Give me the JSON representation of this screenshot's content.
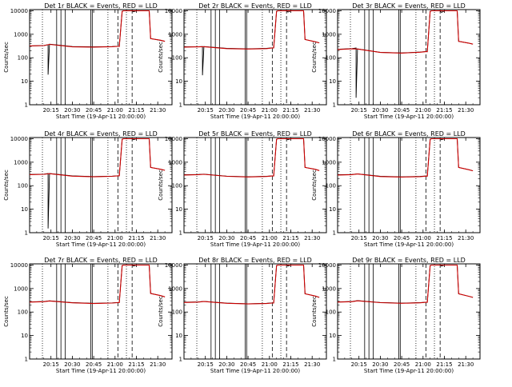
{
  "chart_data": [
    {
      "type": "line",
      "title": "Det 1r BLACK = Events, RED = LLD",
      "xlabel": "Start Time (19-Apr-11 20:00:00)",
      "ylabel": "Counts/sec",
      "y_scale": "log",
      "x_tick_labels": [
        "20:15",
        "20:30",
        "20:45",
        "21:00",
        "21:15",
        "21:30"
      ],
      "y_tick_labels": [
        "1",
        "10",
        "100",
        "1000",
        "10000"
      ],
      "series": [
        {
          "name": "Events",
          "color": "#000000",
          "x": [
            "20:00",
            "20:10",
            "20:13",
            "20:13",
            "20:14",
            "20:30",
            "20:45",
            "20:58",
            "21:02",
            "21:03",
            "21:05",
            "21:06",
            "21:06",
            "21:08",
            "21:12",
            "21:12",
            "21:13",
            "21:15",
            "21:20",
            "21:24",
            "21:25",
            "21:32",
            "21:35"
          ],
          "y": [
            320,
            330,
            360,
            19,
            380,
            300,
            290,
            300,
            310,
            300,
            9500,
            10000,
            10000,
            10000,
            10000,
            10000,
            9000,
            10000,
            10000,
            10000,
            650,
            550,
            500
          ]
        },
        {
          "name": "LLD",
          "color": "#cc0000",
          "x": [
            "20:00",
            "20:10",
            "20:14",
            "20:30",
            "20:45",
            "20:58",
            "21:02",
            "21:03",
            "21:05",
            "21:06",
            "21:20",
            "21:24",
            "21:25",
            "21:32",
            "21:35"
          ],
          "y": [
            320,
            330,
            370,
            290,
            285,
            295,
            305,
            305,
            9500,
            10000,
            10000,
            10000,
            650,
            560,
            500
          ]
        }
      ]
    },
    {
      "type": "line",
      "title": "Det 2r BLACK = Events, RED = LLD",
      "xlabel": "Start Time (19-Apr-11 20:00:00)",
      "ylabel": "Counts/sec",
      "y_scale": "log",
      "x_tick_labels": [
        "20:15",
        "20:30",
        "20:45",
        "21:00",
        "21:15",
        "21:30"
      ],
      "y_tick_labels": [
        "1",
        "10",
        "100",
        "1000",
        "10000"
      ],
      "series": [
        {
          "name": "Events",
          "color": "#000000",
          "x": [
            "20:00",
            "20:10",
            "20:13",
            "20:13",
            "20:14",
            "20:30",
            "20:45",
            "20:58",
            "21:02",
            "21:03",
            "21:05",
            "21:06",
            "21:06",
            "21:08",
            "21:12",
            "21:12",
            "21:13",
            "21:15",
            "21:20",
            "21:24",
            "21:25",
            "21:32",
            "21:35"
          ],
          "y": [
            290,
            295,
            300,
            18,
            300,
            250,
            240,
            250,
            265,
            260,
            9500,
            10000,
            10000,
            10000,
            10000,
            10000,
            8800,
            10000,
            10000,
            10000,
            600,
            480,
            430
          ]
        },
        {
          "name": "LLD",
          "color": "#cc0000",
          "x": [
            "20:00",
            "20:10",
            "20:14",
            "20:30",
            "20:45",
            "20:58",
            "21:02",
            "21:03",
            "21:05",
            "21:06",
            "21:20",
            "21:24",
            "21:25",
            "21:32",
            "21:35"
          ],
          "y": [
            285,
            290,
            295,
            245,
            235,
            245,
            260,
            260,
            9500,
            10000,
            10000,
            10000,
            600,
            480,
            430
          ]
        }
      ]
    },
    {
      "type": "line",
      "title": "Det 3r BLACK = Events, RED = LLD",
      "xlabel": "Start Time (19-Apr-11 20:00:00)",
      "ylabel": "Counts/sec",
      "y_scale": "log",
      "x_tick_labels": [
        "20:15",
        "20:30",
        "20:45",
        "21:00",
        "21:15",
        "21:30"
      ],
      "y_tick_labels": [
        "1",
        "10",
        "100",
        "1000",
        "10000"
      ],
      "series": [
        {
          "name": "Events",
          "color": "#000000",
          "x": [
            "20:00",
            "20:10",
            "20:13",
            "20:13",
            "20:14",
            "20:30",
            "20:45",
            "20:58",
            "21:02",
            "21:03",
            "21:05",
            "21:06",
            "21:06",
            "21:08",
            "21:12",
            "21:12",
            "21:13",
            "21:15",
            "21:20",
            "21:24",
            "21:25",
            "21:32",
            "21:35"
          ],
          "y": [
            230,
            245,
            260,
            2,
            240,
            170,
            160,
            175,
            185,
            180,
            9500,
            10000,
            10000,
            10000,
            10000,
            10000,
            8500,
            10000,
            10000,
            10000,
            500,
            420,
            380
          ]
        },
        {
          "name": "LLD",
          "color": "#cc0000",
          "x": [
            "20:00",
            "20:10",
            "20:14",
            "20:30",
            "20:45",
            "20:58",
            "21:02",
            "21:03",
            "21:05",
            "21:06",
            "21:20",
            "21:24",
            "21:25",
            "21:32",
            "21:35"
          ],
          "y": [
            225,
            240,
            235,
            168,
            158,
            172,
            182,
            182,
            9500,
            10000,
            10000,
            10000,
            500,
            420,
            380
          ]
        }
      ]
    },
    {
      "type": "line",
      "title": "Det 4r BLACK = Events, RED = LLD",
      "xlabel": "Start Time (19-Apr-11 20:00:00)",
      "ylabel": "Counts/sec",
      "y_scale": "log",
      "x_tick_labels": [
        "20:15",
        "20:30",
        "20:45",
        "21:00",
        "21:15",
        "21:30"
      ],
      "y_tick_labels": [
        "1",
        "10",
        "100",
        "1000",
        "10000"
      ],
      "series": [
        {
          "name": "Events",
          "color": "#000000",
          "x": [
            "20:00",
            "20:10",
            "20:13",
            "20:13",
            "20:14",
            "20:30",
            "20:45",
            "20:58",
            "21:02",
            "21:03",
            "21:05",
            "21:06",
            "21:06",
            "21:08",
            "21:12",
            "21:12",
            "21:13",
            "21:15",
            "21:20",
            "21:24",
            "21:25",
            "21:32",
            "21:35"
          ],
          "y": [
            300,
            310,
            330,
            1.5,
            330,
            260,
            245,
            255,
            265,
            260,
            9500,
            10000,
            10000,
            10000,
            10000,
            10000,
            9000,
            10000,
            10000,
            10000,
            600,
            500,
            450
          ]
        },
        {
          "name": "LLD",
          "color": "#cc0000",
          "x": [
            "20:00",
            "20:10",
            "20:14",
            "20:30",
            "20:45",
            "20:58",
            "21:02",
            "21:03",
            "21:05",
            "21:06",
            "21:20",
            "21:24",
            "21:25",
            "21:32",
            "21:35"
          ],
          "y": [
            295,
            305,
            325,
            255,
            240,
            250,
            262,
            262,
            9500,
            10000,
            10000,
            10000,
            600,
            500,
            450
          ]
        }
      ]
    },
    {
      "type": "line",
      "title": "Det 5r BLACK = Events, RED = LLD",
      "xlabel": "Start Time (19-Apr-11 20:00:00)",
      "ylabel": "Counts/sec",
      "y_scale": "log",
      "x_tick_labels": [
        "20:15",
        "20:30",
        "20:45",
        "21:00",
        "21:15",
        "21:30"
      ],
      "y_tick_labels": [
        "1",
        "10",
        "100",
        "1000",
        "10000"
      ],
      "series": [
        {
          "name": "Events",
          "color": "#000000",
          "x": [
            "20:00",
            "20:10",
            "20:14",
            "20:30",
            "20:45",
            "20:58",
            "21:02",
            "21:03",
            "21:05",
            "21:06",
            "21:06",
            "21:08",
            "21:12",
            "21:12",
            "21:13",
            "21:15",
            "21:20",
            "21:24",
            "21:25",
            "21:32",
            "21:35"
          ],
          "y": [
            290,
            300,
            310,
            255,
            240,
            250,
            262,
            258,
            9500,
            10000,
            10000,
            10000,
            10000,
            10000,
            9000,
            10000,
            10000,
            10000,
            600,
            500,
            440
          ]
        },
        {
          "name": "LLD",
          "color": "#cc0000",
          "x": [
            "20:00",
            "20:10",
            "20:14",
            "20:30",
            "20:45",
            "20:58",
            "21:02",
            "21:03",
            "21:05",
            "21:06",
            "21:20",
            "21:24",
            "21:25",
            "21:32",
            "21:35"
          ],
          "y": [
            285,
            295,
            305,
            250,
            236,
            246,
            258,
            258,
            9500,
            10000,
            10000,
            10000,
            600,
            500,
            440
          ]
        }
      ]
    },
    {
      "type": "line",
      "title": "Det 6r BLACK = Events, RED = LLD",
      "xlabel": "Start Time (19-Apr-11 20:00:00)",
      "ylabel": "Counts/sec",
      "y_scale": "log",
      "x_tick_labels": [
        "20:15",
        "20:30",
        "20:45",
        "21:00",
        "21:15",
        "21:30"
      ],
      "y_tick_labels": [
        "1",
        "10",
        "100",
        "1000",
        "10000"
      ],
      "series": [
        {
          "name": "Events",
          "color": "#000000",
          "x": [
            "20:00",
            "20:10",
            "20:14",
            "20:30",
            "20:45",
            "20:58",
            "21:02",
            "21:03",
            "21:05",
            "21:06",
            "21:06",
            "21:08",
            "21:12",
            "21:12",
            "21:13",
            "21:15",
            "21:20",
            "21:24",
            "21:25",
            "21:32",
            "21:35"
          ],
          "y": [
            290,
            300,
            320,
            250,
            238,
            248,
            258,
            255,
            9500,
            10000,
            10000,
            10000,
            10000,
            10000,
            9000,
            10000,
            10000,
            10000,
            600,
            480,
            430
          ]
        },
        {
          "name": "LLD",
          "color": "#cc0000",
          "x": [
            "20:00",
            "20:10",
            "20:14",
            "20:30",
            "20:45",
            "20:58",
            "21:02",
            "21:03",
            "21:05",
            "21:06",
            "21:20",
            "21:24",
            "21:25",
            "21:32",
            "21:35"
          ],
          "y": [
            285,
            295,
            315,
            245,
            234,
            244,
            254,
            254,
            9500,
            10000,
            10000,
            10000,
            600,
            480,
            430
          ]
        }
      ]
    },
    {
      "type": "line",
      "title": "Det 7r BLACK = Events, RED = LLD",
      "xlabel": "Start Time (19-Apr-11 20:00:00)",
      "ylabel": "Counts/sec",
      "y_scale": "log",
      "x_tick_labels": [
        "20:15",
        "20:30",
        "20:45",
        "21:00",
        "21:15",
        "21:30"
      ],
      "y_tick_labels": [
        "1",
        "10",
        "100",
        "1000",
        "10000"
      ],
      "series": [
        {
          "name": "Events",
          "color": "#000000",
          "x": [
            "20:00",
            "20:10",
            "20:14",
            "20:30",
            "20:45",
            "20:58",
            "21:02",
            "21:03",
            "21:05",
            "21:06",
            "21:06",
            "21:08",
            "21:12",
            "21:12",
            "21:13",
            "21:15",
            "21:20",
            "21:24",
            "21:25",
            "21:32",
            "21:35"
          ],
          "y": [
            270,
            280,
            300,
            250,
            235,
            245,
            255,
            252,
            9500,
            10000,
            10000,
            10000,
            10000,
            10000,
            9000,
            10000,
            10000,
            10000,
            620,
            500,
            440
          ]
        },
        {
          "name": "LLD",
          "color": "#cc0000",
          "x": [
            "20:00",
            "20:10",
            "20:14",
            "20:30",
            "20:45",
            "20:58",
            "21:02",
            "21:03",
            "21:05",
            "21:06",
            "21:20",
            "21:24",
            "21:25",
            "21:32",
            "21:35"
          ],
          "y": [
            265,
            275,
            296,
            246,
            231,
            241,
            251,
            251,
            9500,
            10000,
            10000,
            10000,
            620,
            500,
            440
          ]
        }
      ]
    },
    {
      "type": "line",
      "title": "Det 8r BLACK = Events, RED = LLD",
      "xlabel": "Start Time (19-Apr-11 20:00:00)",
      "ylabel": "Counts/sec",
      "y_scale": "log",
      "x_tick_labels": [
        "20:15",
        "20:30",
        "20:45",
        "21:00",
        "21:15",
        "21:30"
      ],
      "y_tick_labels": [
        "1",
        "10",
        "100",
        "1000",
        "10000"
      ],
      "series": [
        {
          "name": "Events",
          "color": "#000000",
          "x": [
            "20:00",
            "20:10",
            "20:14",
            "20:30",
            "20:45",
            "20:58",
            "21:02",
            "21:03",
            "21:05",
            "21:06",
            "21:06",
            "21:08",
            "21:12",
            "21:12",
            "21:13",
            "21:15",
            "21:20",
            "21:24",
            "21:25",
            "21:32",
            "21:35"
          ],
          "y": [
            260,
            270,
            285,
            240,
            225,
            235,
            245,
            242,
            9500,
            10000,
            10000,
            10000,
            10000,
            10000,
            9000,
            10000,
            10000,
            10000,
            600,
            480,
            420
          ]
        },
        {
          "name": "LLD",
          "color": "#cc0000",
          "x": [
            "20:00",
            "20:10",
            "20:14",
            "20:30",
            "20:45",
            "20:58",
            "21:02",
            "21:03",
            "21:05",
            "21:06",
            "21:20",
            "21:24",
            "21:25",
            "21:32",
            "21:35"
          ],
          "y": [
            255,
            265,
            281,
            236,
            221,
            231,
            241,
            241,
            9500,
            10000,
            10000,
            10000,
            600,
            480,
            420
          ]
        }
      ]
    },
    {
      "type": "line",
      "title": "Det 9r BLACK = Events, RED = LLD",
      "xlabel": "Start Time (19-Apr-11 20:00:00)",
      "ylabel": "Counts/sec",
      "y_scale": "log",
      "x_tick_labels": [
        "20:15",
        "20:30",
        "20:45",
        "21:00",
        "21:15",
        "21:30"
      ],
      "y_tick_labels": [
        "1",
        "10",
        "100",
        "1000",
        "10000"
      ],
      "series": [
        {
          "name": "Events",
          "color": "#000000",
          "x": [
            "20:00",
            "20:10",
            "20:14",
            "20:30",
            "20:45",
            "20:58",
            "21:02",
            "21:03",
            "21:05",
            "21:06",
            "21:06",
            "21:08",
            "21:12",
            "21:12",
            "21:13",
            "21:15",
            "21:20",
            "21:24",
            "21:25",
            "21:32",
            "21:35"
          ],
          "y": [
            270,
            280,
            305,
            255,
            240,
            250,
            262,
            258,
            9500,
            10000,
            10000,
            10000,
            10000,
            10000,
            9000,
            10000,
            10000,
            10000,
            600,
            470,
            420
          ]
        },
        {
          "name": "LLD",
          "color": "#cc0000",
          "x": [
            "20:00",
            "20:10",
            "20:14",
            "20:30",
            "20:45",
            "20:58",
            "21:02",
            "21:03",
            "21:05",
            "21:06",
            "21:20",
            "21:24",
            "21:25",
            "21:32",
            "21:35"
          ],
          "y": [
            265,
            275,
            300,
            250,
            236,
            246,
            258,
            258,
            9500,
            10000,
            10000,
            10000,
            600,
            470,
            420
          ]
        }
      ]
    }
  ]
}
